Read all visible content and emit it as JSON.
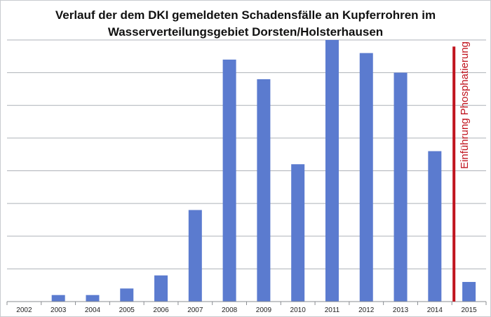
{
  "colors": {
    "bar": "#5b7bcf",
    "marker": "#c0141e",
    "grid": "#aeb2b8",
    "axis": "#8a8d92",
    "border": "#c8cbd0"
  },
  "chart_data": {
    "type": "bar",
    "title_line1": "Verlauf der dem DKI gemeldeten Schadensfälle an Kupferrohren im",
    "title_line2": "Wasserverteilungsgebiet Dorsten/Holsterhausen",
    "categories": [
      "2002",
      "2003",
      "2004",
      "2005",
      "2006",
      "2007",
      "2008",
      "2009",
      "2010",
      "2011",
      "2012",
      "2013",
      "2014",
      "2015"
    ],
    "values": [
      0,
      1,
      1,
      2,
      4,
      14,
      37,
      34,
      21,
      40,
      38,
      35,
      23,
      3
    ],
    "ylim": [
      0,
      40
    ],
    "ytick_step": 5,
    "y_tick_labels_shown": false,
    "grid": true,
    "annotation": {
      "text": "Einführung Phosphatierung",
      "between": [
        "2014",
        "2015"
      ],
      "top_value": 39
    }
  }
}
